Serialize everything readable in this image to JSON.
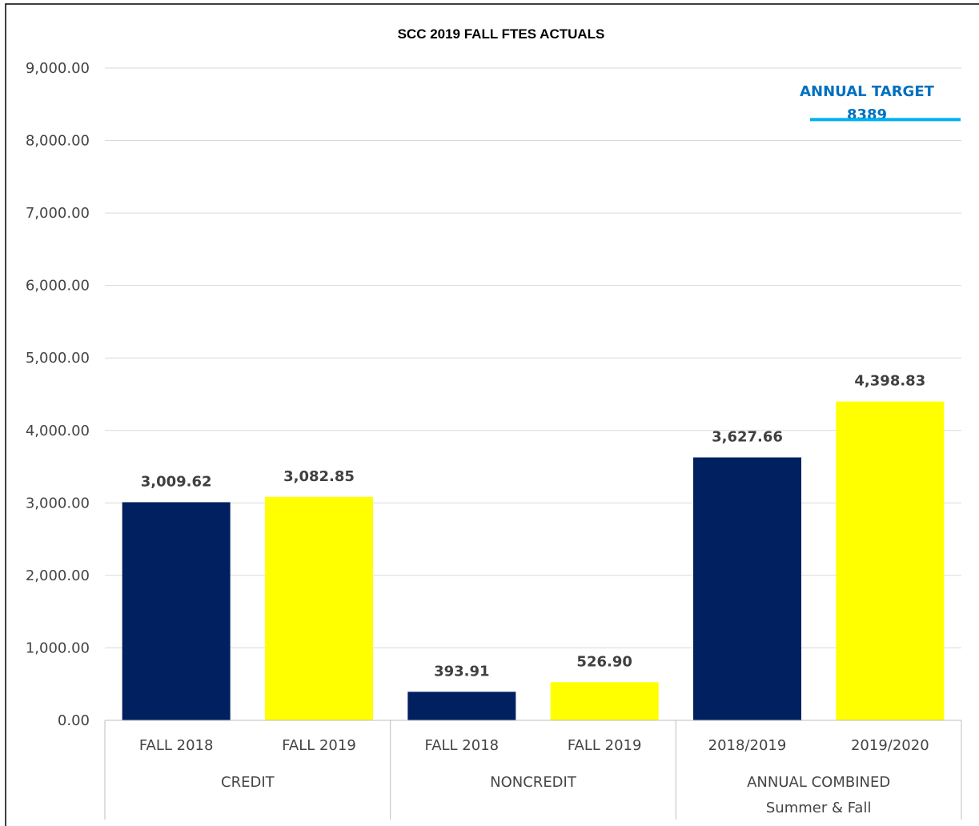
{
  "chart_data": {
    "type": "bar",
    "title": "SCC 2019 FALL FTES ACTUALS",
    "ylim": [
      0,
      9000
    ],
    "y_ticks": [
      "0.00",
      "1,000.00",
      "2,000.00",
      "3,000.00",
      "4,000.00",
      "5,000.00",
      "6,000.00",
      "7,000.00",
      "8,000.00",
      "9,000.00"
    ],
    "y_tick_values": [
      0,
      1000,
      2000,
      3000,
      4000,
      5000,
      6000,
      7000,
      8000,
      9000
    ],
    "grid": true,
    "groups": [
      {
        "label": "CREDIT",
        "label_line2": "",
        "bars": [
          {
            "category": "FALL 2018",
            "value": 3009.62,
            "label": "3,009.62",
            "color": "#002060"
          },
          {
            "category": "FALL 2019",
            "value": 3082.85,
            "label": "3,082.85",
            "color": "#FFFF00"
          }
        ]
      },
      {
        "label": "NONCREDIT",
        "label_line2": "",
        "bars": [
          {
            "category": "FALL 2018",
            "value": 393.91,
            "label": "393.91",
            "color": "#002060"
          },
          {
            "category": "FALL 2019",
            "value": 526.9,
            "label": "526.90",
            "color": "#FFFF00"
          }
        ]
      },
      {
        "label": "ANNUAL COMBINED",
        "label_line2": "Summer & Fall",
        "bars": [
          {
            "category": "2018/2019",
            "value": 3627.66,
            "label": "3,627.66",
            "color": "#002060"
          },
          {
            "category": "2019/2020",
            "value": 4398.83,
            "label": "4,398.83",
            "color": "#FFFF00"
          }
        ]
      }
    ],
    "target": {
      "label_line1": "ANNUAL TARGET",
      "label_line2": "8389",
      "value": 8389,
      "line_color": "#00B0F0",
      "text_color": "#0070C0"
    }
  }
}
